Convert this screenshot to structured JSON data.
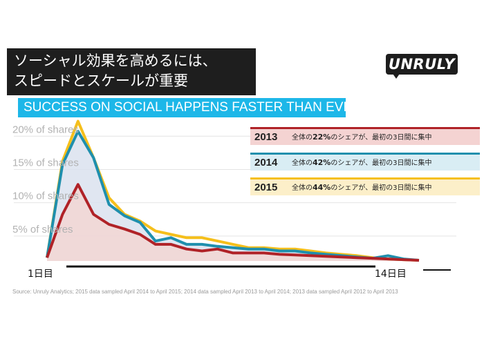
{
  "headline_jp": [
    "ソーシャル効果を高めるには、",
    "スピードとスケールが重要"
  ],
  "logo": "UNRULY",
  "headline_en": "SUCCESS ON SOCIAL HAPPENS FASTER THAN EVER",
  "legend": [
    {
      "year": "2013",
      "before": "全体の",
      "pct": "22%",
      "after": "のシェアが、最初の3日間に集中",
      "color": "#b02227",
      "bg": "#f4d3d2"
    },
    {
      "year": "2014",
      "before": "全体の",
      "pct": "42%",
      "after": "のシェアが、最初の3日間に集中",
      "color": "#1f8fad",
      "bg": "#d9edf4"
    },
    {
      "year": "2015",
      "before": "全体の",
      "pct": "44%",
      "after": "のシェアが、最初の3日間に集中",
      "color": "#f5bf1b",
      "bg": "#fcefc9"
    }
  ],
  "source": "Source: Unruly Analytics; 2015 data sampled April 2014 to April 2015; 2014 data sampled April 2013 to April 2014; 2013 data sampled April 2012 to April 2013",
  "chart_data": {
    "type": "area",
    "y_ticks": [
      "20% of shares",
      "15% of shares",
      "10% of shares",
      "5% of shares"
    ],
    "y_tick_values": [
      20,
      15,
      10,
      5
    ],
    "ylim": [
      0,
      22
    ],
    "x_labels": {
      "start": "1日目",
      "end": "14日目"
    },
    "x": [
      1,
      2,
      3,
      4,
      5,
      6,
      7,
      8,
      9,
      10,
      11,
      12,
      13,
      14,
      15,
      16,
      17,
      18,
      19,
      20,
      21,
      22,
      23,
      24,
      25
    ],
    "grid": true,
    "series": [
      {
        "name": "2015",
        "color": "#f5bf1b",
        "fill": "none",
        "values": [
          0.5,
          15.0,
          21.0,
          15.5,
          9.5,
          7.0,
          6.0,
          4.5,
          4.0,
          3.5,
          3.5,
          3.0,
          2.5,
          2.0,
          2.0,
          1.8,
          1.8,
          1.5,
          1.2,
          1.0,
          0.8,
          0.5,
          0.3,
          0.2,
          0.1
        ]
      },
      {
        "name": "2014",
        "color": "#1f8fad",
        "fill": "#dae2ee",
        "values": [
          0.5,
          14.5,
          19.5,
          15.5,
          8.5,
          6.8,
          5.8,
          3.0,
          3.5,
          2.5,
          2.5,
          2.2,
          2.0,
          1.8,
          1.8,
          1.5,
          1.5,
          1.2,
          1.0,
          0.8,
          0.6,
          0.4,
          0.8,
          0.3,
          0.1
        ]
      },
      {
        "name": "2013",
        "color": "#b02227",
        "fill": "#f2d6d3",
        "values": [
          0.5,
          7.0,
          11.5,
          7.0,
          5.5,
          4.8,
          4.0,
          2.5,
          2.5,
          1.8,
          1.5,
          1.8,
          1.2,
          1.2,
          1.2,
          1.0,
          0.9,
          0.8,
          0.7,
          0.6,
          0.5,
          0.4,
          0.3,
          0.2,
          0.1
        ]
      }
    ]
  }
}
